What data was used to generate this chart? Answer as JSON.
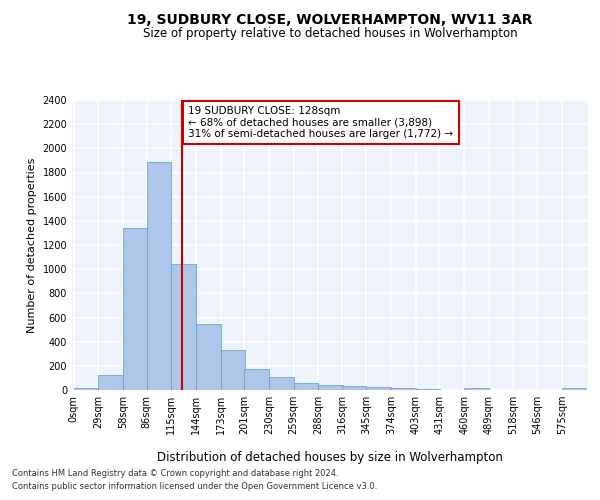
{
  "title": "19, SUDBURY CLOSE, WOLVERHAMPTON, WV11 3AR",
  "subtitle": "Size of property relative to detached houses in Wolverhampton",
  "xlabel": "Distribution of detached houses by size in Wolverhampton",
  "ylabel": "Number of detached properties",
  "bar_labels": [
    "0sqm",
    "29sqm",
    "58sqm",
    "86sqm",
    "115sqm",
    "144sqm",
    "173sqm",
    "201sqm",
    "230sqm",
    "259sqm",
    "288sqm",
    "316sqm",
    "345sqm",
    "374sqm",
    "403sqm",
    "431sqm",
    "460sqm",
    "489sqm",
    "518sqm",
    "546sqm",
    "575sqm"
  ],
  "bar_values": [
    15,
    125,
    1340,
    1890,
    1045,
    545,
    335,
    170,
    110,
    60,
    40,
    30,
    25,
    20,
    10,
    0,
    20,
    0,
    0,
    0,
    15
  ],
  "bar_color": "#aec6e8",
  "bar_edgecolor": "#5b9bd5",
  "vline_x": 128,
  "vline_color": "#cc0000",
  "ylim": [
    0,
    2400
  ],
  "yticks": [
    0,
    200,
    400,
    600,
    800,
    1000,
    1200,
    1400,
    1600,
    1800,
    2000,
    2200,
    2400
  ],
  "annotation_title": "19 SUDBURY CLOSE: 128sqm",
  "annotation_line1": "← 68% of detached houses are smaller (3,898)",
  "annotation_line2": "31% of semi-detached houses are larger (1,772) →",
  "annotation_box_color": "#cc0000",
  "footer_line1": "Contains HM Land Registry data © Crown copyright and database right 2024.",
  "footer_line2": "Contains public sector information licensed under the Open Government Licence v3.0.",
  "bg_color": "#eef2fb",
  "grid_color": "#ffffff",
  "bin_width": 29
}
